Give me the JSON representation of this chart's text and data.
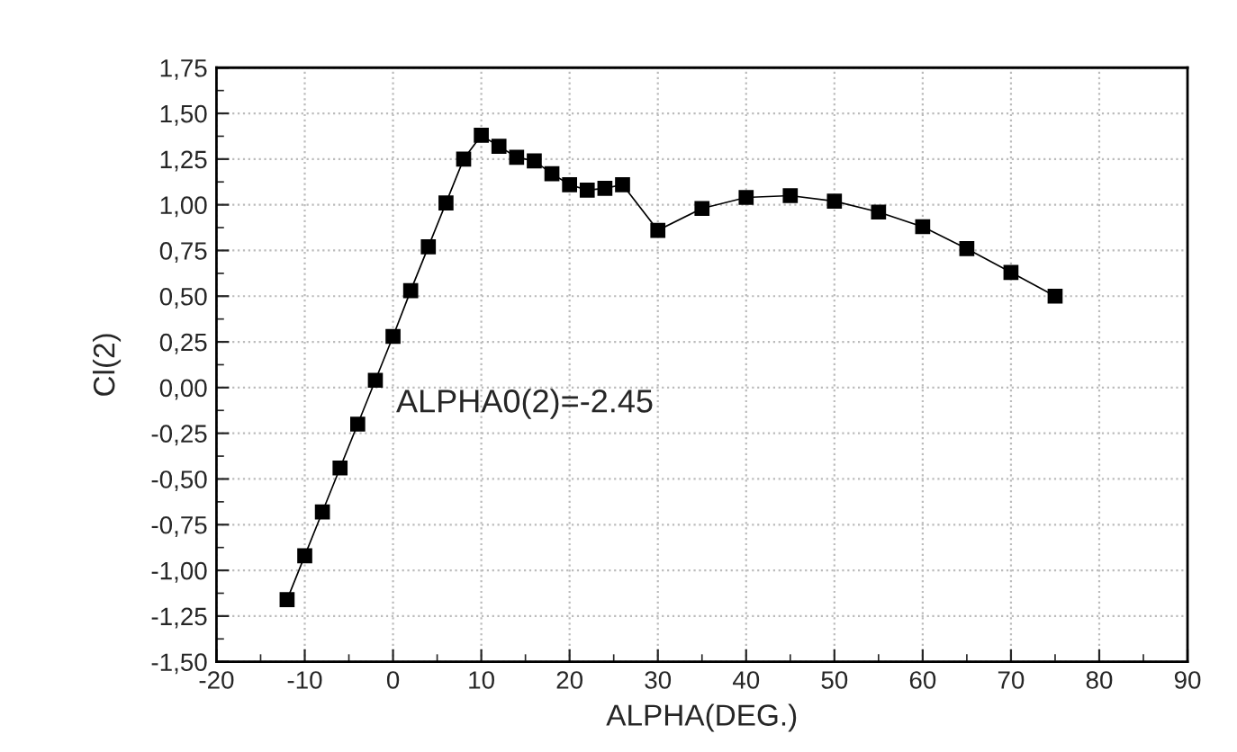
{
  "chart_data": {
    "type": "line",
    "xlabel": "ALPHA(DEG.)",
    "ylabel": "Cl(2)",
    "annotations": [
      "ALPHA0(2)=-2.45"
    ],
    "x": [
      -12,
      -10,
      -8,
      -6,
      -4,
      -2,
      0,
      2,
      4,
      6,
      8,
      10,
      12,
      14,
      16,
      18,
      20,
      22,
      24,
      26,
      30,
      35,
      40,
      45,
      50,
      55,
      60,
      65,
      70,
      75
    ],
    "series": [
      {
        "color": "#000000",
        "values": [
          -1.16,
          -0.92,
          -0.68,
          -0.44,
          -0.2,
          0.04,
          0.28,
          0.53,
          0.77,
          1.01,
          1.25,
          1.38,
          1.32,
          1.26,
          1.24,
          1.17,
          1.11,
          1.08,
          1.09,
          1.11,
          0.86,
          0.98,
          1.04,
          1.05,
          1.02,
          0.96,
          0.88,
          0.76,
          0.63,
          0.5
        ]
      }
    ],
    "marker": "square",
    "line_style": "solid",
    "grid": true,
    "xlim": [
      -20,
      90
    ],
    "xticks": [
      -20,
      -10,
      0,
      10,
      20,
      30,
      40,
      50,
      60,
      70,
      80,
      90
    ],
    "ylim": [
      -1.5,
      1.75
    ],
    "yticks": [
      {
        "value": -1.5,
        "label": "-1,50"
      },
      {
        "value": -1.25,
        "label": "-1,25"
      },
      {
        "value": -1.0,
        "label": "-1,00"
      },
      {
        "value": -0.75,
        "label": "-0,75"
      },
      {
        "value": -0.5,
        "label": "-0,50"
      },
      {
        "value": -0.25,
        "label": "-0,25"
      },
      {
        "value": 0,
        "label": "0,00"
      },
      {
        "value": 0.25,
        "label": "0,25"
      },
      {
        "value": 0.5,
        "label": "0,50"
      },
      {
        "value": 0.75,
        "label": "0,75"
      },
      {
        "value": 1.0,
        "label": "1,00"
      },
      {
        "value": 1.25,
        "label": "1,25"
      },
      {
        "value": 1.5,
        "label": "1,50"
      },
      {
        "value": 1.75,
        "label": "1,75"
      }
    ]
  }
}
